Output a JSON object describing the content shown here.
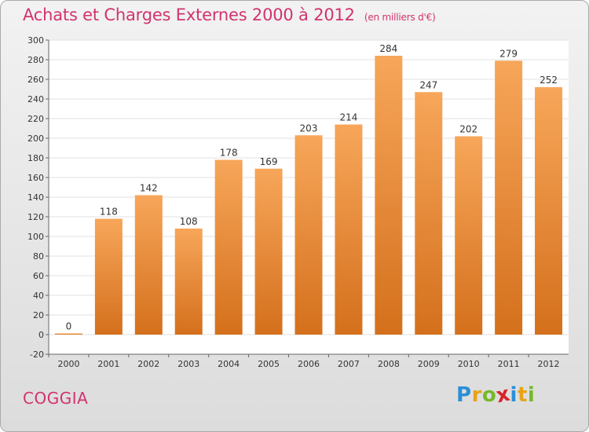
{
  "header": {
    "title": "Achats et Charges Externes 2000 à 2012",
    "subtitle": "(en milliers d'€)"
  },
  "footer": {
    "commune": "COGGIA",
    "logo": {
      "letters": [
        "P",
        "r",
        "o",
        "x",
        "i",
        "t",
        "i"
      ],
      "colors": [
        "#2a8fd6",
        "#e8a317",
        "#76b82a",
        "#d8232a",
        "#2a8fd6",
        "#e8a317",
        "#76b82a"
      ]
    }
  },
  "chart_data": {
    "type": "bar",
    "categories": [
      "2000",
      "2001",
      "2002",
      "2003",
      "2004",
      "2005",
      "2006",
      "2007",
      "2008",
      "2009",
      "2010",
      "2011",
      "2012"
    ],
    "values": [
      0,
      118,
      142,
      108,
      178,
      169,
      203,
      214,
      284,
      247,
      202,
      279,
      252
    ],
    "title": "Achats et Charges Externes 2000 à 2012",
    "subtitle": "(en milliers d'€)",
    "xlabel": "",
    "ylabel": "",
    "ylim": [
      -20,
      300
    ],
    "yticks": [
      -20,
      0,
      20,
      40,
      60,
      80,
      100,
      120,
      140,
      160,
      180,
      200,
      220,
      240,
      260,
      280,
      300
    ],
    "grid": true,
    "legend": "none",
    "colors": {
      "bar_top": "#f7a65a",
      "bar_bottom": "#d4701c",
      "axis": "#666666",
      "grid": "#e0e0e0"
    }
  }
}
